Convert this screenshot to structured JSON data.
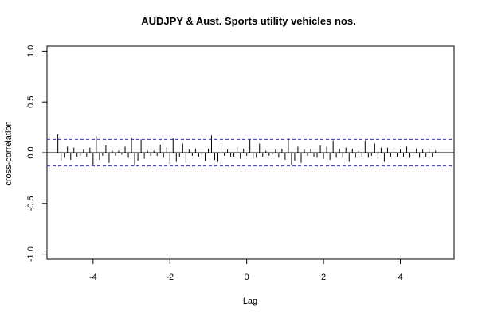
{
  "chart_data": {
    "type": "bar",
    "title": "AUDJPY & Aust. Sports utility vehicles nos.",
    "xlabel": "Lag",
    "ylabel": "cross-correlation",
    "xlim": [
      -5.2,
      5.4
    ],
    "ylim": [
      -1.05,
      1.05
    ],
    "x_ticks": [
      -4,
      -2,
      0,
      2,
      4
    ],
    "x_tick_labels": [
      "-4",
      "-2",
      "0",
      "2",
      "4"
    ],
    "y_ticks": [
      -1.0,
      -0.5,
      0.0,
      0.5,
      1.0
    ],
    "y_tick_labels": [
      "-1.0",
      "-0.5",
      "0.0",
      "0.5",
      "1.0"
    ],
    "confidence_band": 0.13,
    "colors": {
      "bars": "#000000",
      "confidence": "#3333cc",
      "zero_line": "#000000",
      "frame": "#000000"
    },
    "lags": [
      -4.917,
      -4.833,
      -4.75,
      -4.667,
      -4.583,
      -4.5,
      -4.417,
      -4.333,
      -4.25,
      -4.167,
      -4.083,
      -4.0,
      -3.917,
      -3.833,
      -3.75,
      -3.667,
      -3.583,
      -3.5,
      -3.417,
      -3.333,
      -3.25,
      -3.167,
      -3.083,
      -3.0,
      -2.917,
      -2.833,
      -2.75,
      -2.667,
      -2.583,
      -2.5,
      -2.417,
      -2.333,
      -2.25,
      -2.167,
      -2.083,
      -2.0,
      -1.917,
      -1.833,
      -1.75,
      -1.667,
      -1.583,
      -1.5,
      -1.417,
      -1.333,
      -1.25,
      -1.167,
      -1.083,
      -1.0,
      -0.917,
      -0.833,
      -0.75,
      -0.667,
      -0.583,
      -0.5,
      -0.417,
      -0.333,
      -0.25,
      -0.167,
      -0.083,
      0.0,
      0.083,
      0.167,
      0.25,
      0.333,
      0.417,
      0.5,
      0.583,
      0.667,
      0.75,
      0.833,
      0.917,
      1.0,
      1.083,
      1.167,
      1.25,
      1.333,
      1.417,
      1.5,
      1.583,
      1.667,
      1.75,
      1.833,
      1.917,
      2.0,
      2.083,
      2.167,
      2.25,
      2.333,
      2.417,
      2.5,
      2.583,
      2.667,
      2.75,
      2.833,
      2.917,
      3.0,
      3.083,
      3.167,
      3.25,
      3.333,
      3.417,
      3.5,
      3.583,
      3.667,
      3.75,
      3.833,
      3.917,
      4.0,
      4.083,
      4.167,
      4.25,
      4.333,
      4.417,
      4.5,
      4.583,
      4.667,
      4.75,
      4.833,
      4.917
    ],
    "values": [
      0.18,
      -0.08,
      -0.05,
      0.06,
      -0.07,
      0.05,
      -0.04,
      -0.03,
      0.03,
      -0.04,
      0.05,
      -0.12,
      0.16,
      -0.07,
      -0.03,
      0.07,
      -0.1,
      0.02,
      -0.03,
      0.02,
      -0.02,
      0.06,
      -0.05,
      0.15,
      -0.13,
      -0.08,
      0.13,
      -0.06,
      0.02,
      -0.03,
      0.02,
      -0.03,
      0.08,
      -0.05,
      0.05,
      -0.11,
      0.14,
      -0.09,
      -0.04,
      0.09,
      -0.1,
      0.03,
      -0.03,
      0.04,
      -0.04,
      -0.05,
      -0.08,
      0.04,
      0.17,
      -0.07,
      -0.09,
      0.07,
      -0.03,
      0.03,
      -0.04,
      -0.04,
      0.06,
      -0.06,
      0.04,
      -0.03,
      0.13,
      -0.06,
      -0.05,
      0.09,
      -0.04,
      0.02,
      -0.03,
      -0.02,
      0.03,
      -0.05,
      0.04,
      -0.07,
      0.14,
      -0.12,
      -0.08,
      0.06,
      -0.1,
      0.03,
      -0.03,
      0.04,
      -0.04,
      -0.05,
      0.07,
      -0.06,
      0.06,
      -0.07,
      0.12,
      -0.05,
      0.04,
      -0.05,
      0.05,
      -0.09,
      0.04,
      -0.05,
      0.02,
      -0.04,
      0.12,
      -0.05,
      -0.03,
      0.09,
      -0.06,
      0.05,
      -0.09,
      0.05,
      -0.04,
      0.03,
      -0.04,
      0.03,
      -0.04,
      0.06,
      -0.05,
      -0.03,
      0.04,
      -0.05,
      0.03,
      -0.04,
      0.03,
      -0.04,
      0.02
    ]
  }
}
